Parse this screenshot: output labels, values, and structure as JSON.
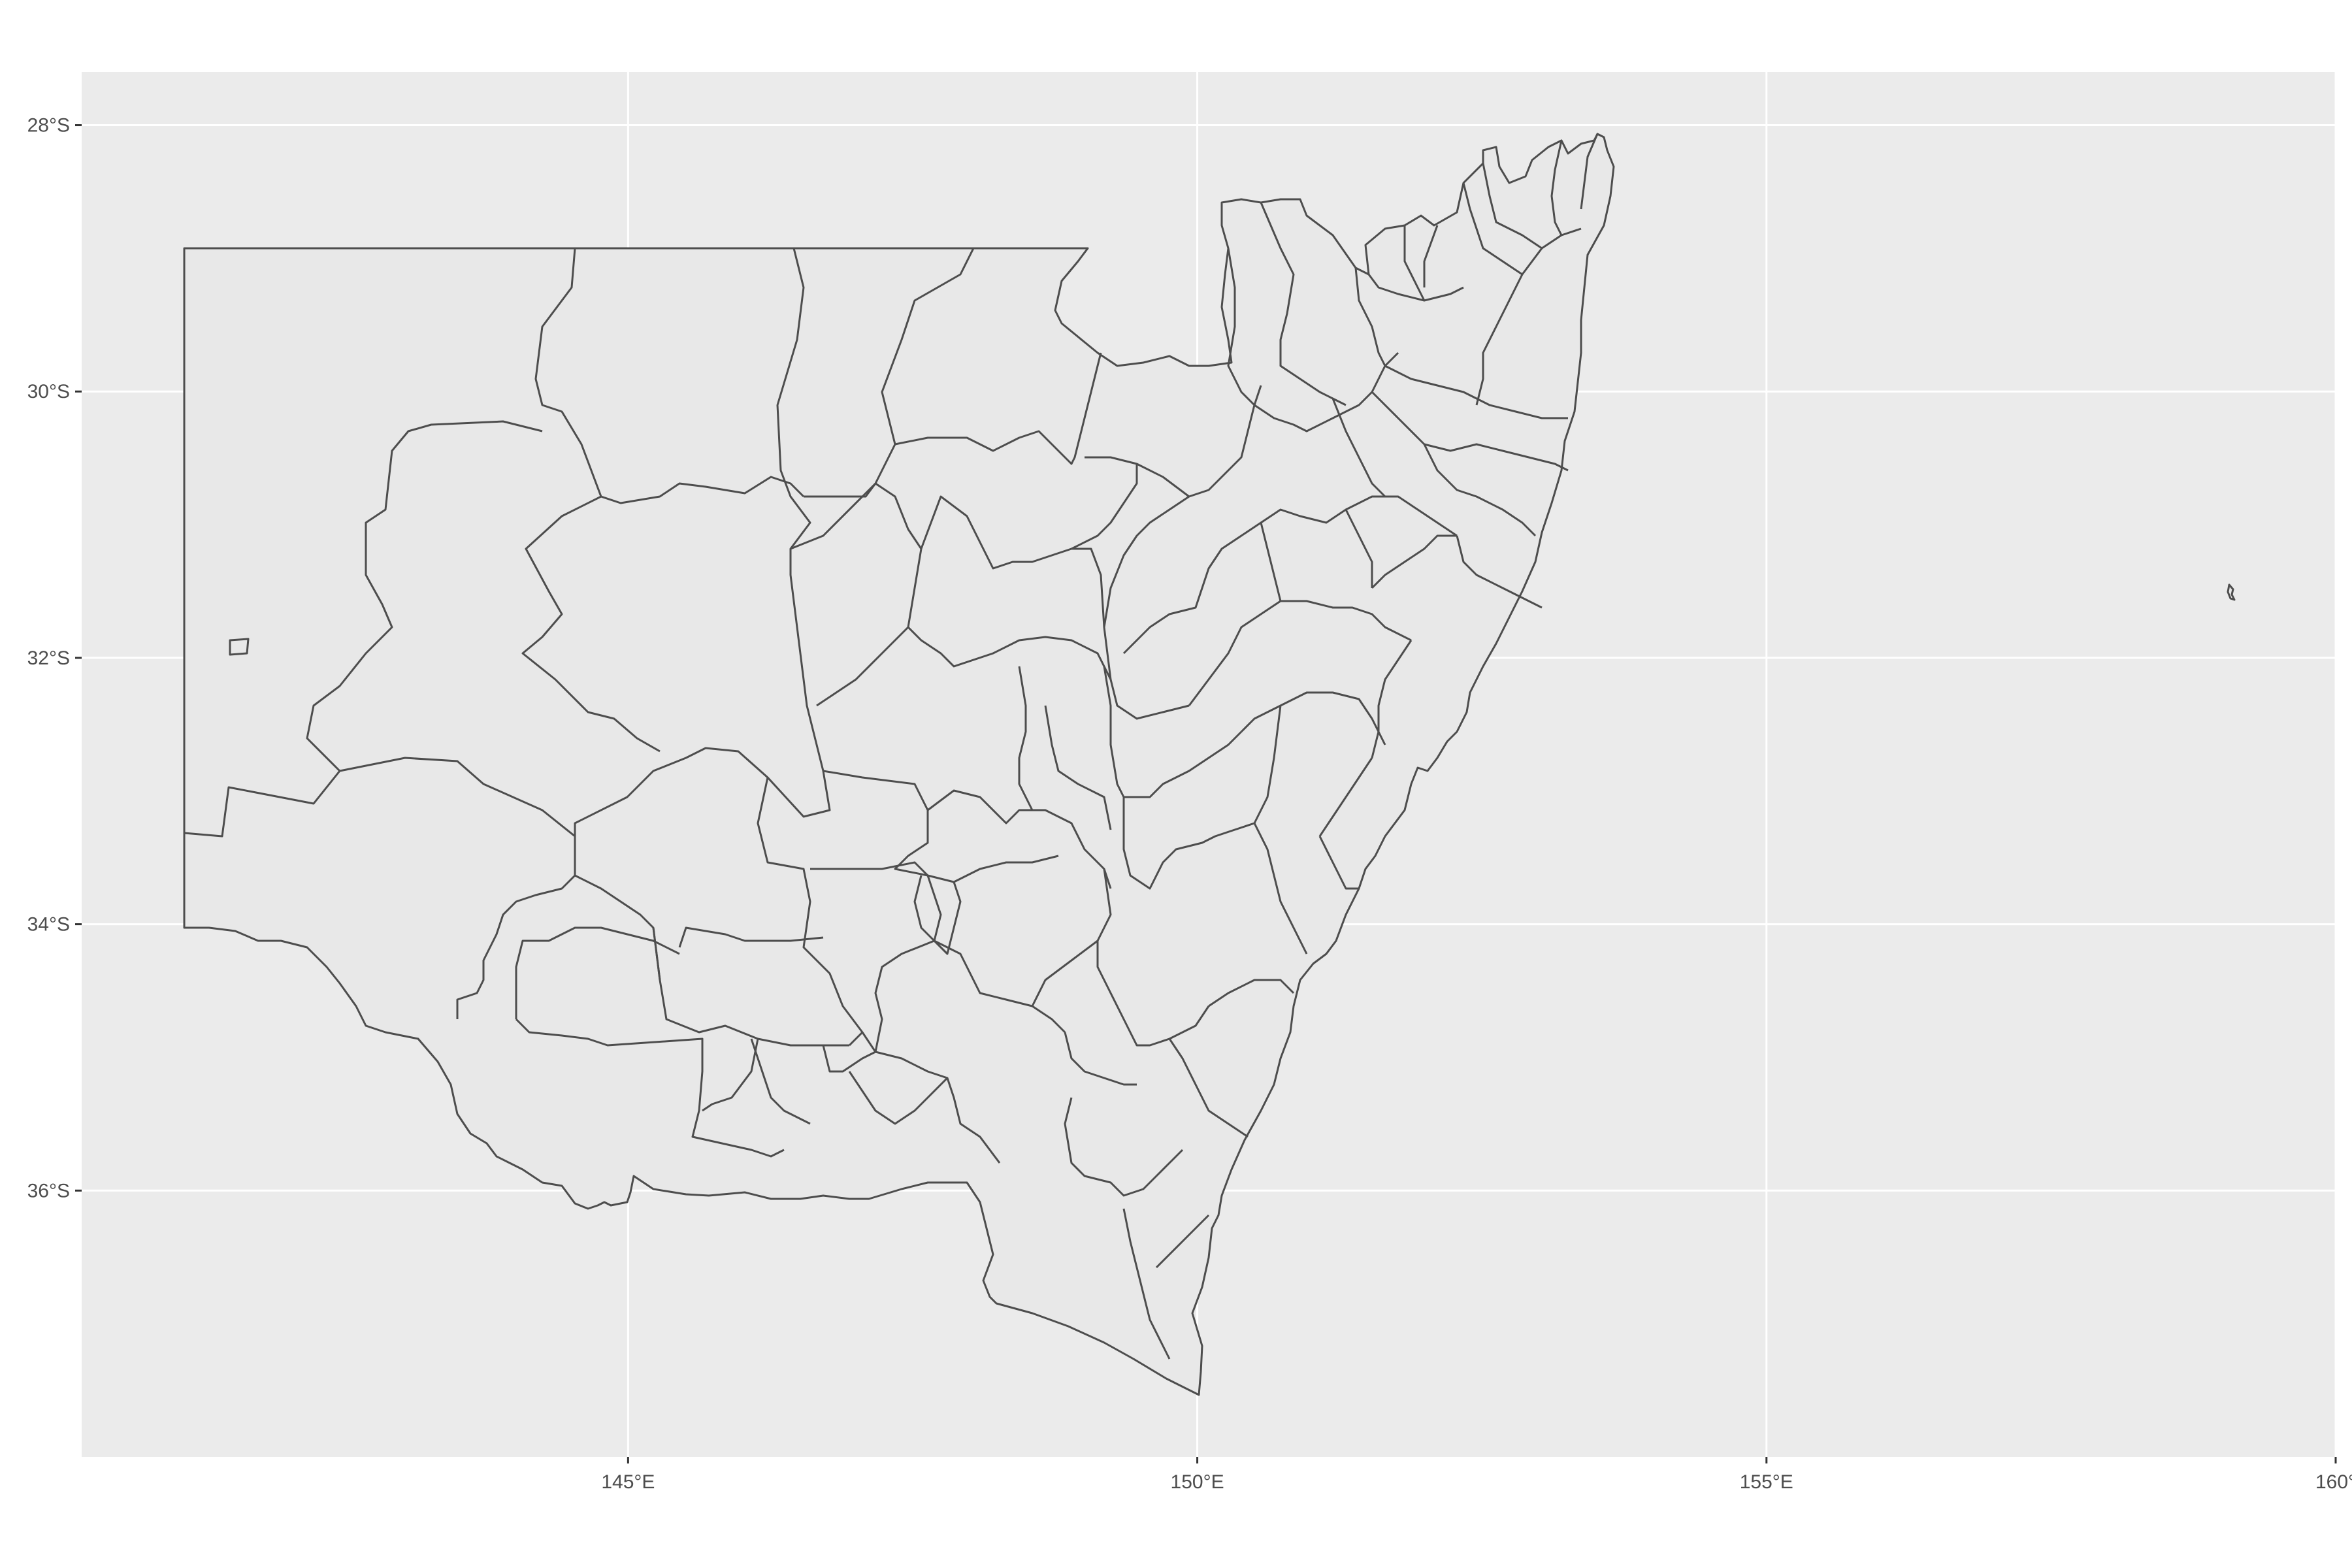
{
  "chart_data": {
    "type": "map",
    "xlim": [
      140.2,
      160
    ],
    "ylim": [
      -38.0,
      -27.6
    ],
    "x_ticks": [
      {
        "value": 145,
        "label": "145°E"
      },
      {
        "value": 150,
        "label": "150°E"
      },
      {
        "value": 155,
        "label": "155°E"
      },
      {
        "value": 160,
        "label": "160°"
      }
    ],
    "y_ticks": [
      {
        "value": -28,
        "label": "28°S"
      },
      {
        "value": -30,
        "label": "30°S"
      },
      {
        "value": -32,
        "label": "32°S"
      },
      {
        "value": -34,
        "label": "34°S"
      },
      {
        "value": -36,
        "label": "36°S"
      }
    ],
    "grid": true,
    "colors": {
      "panel": "#ebebeb",
      "fill": "#e8e8e8",
      "border": "#4d4d4d",
      "grid": "#ffffff"
    }
  }
}
